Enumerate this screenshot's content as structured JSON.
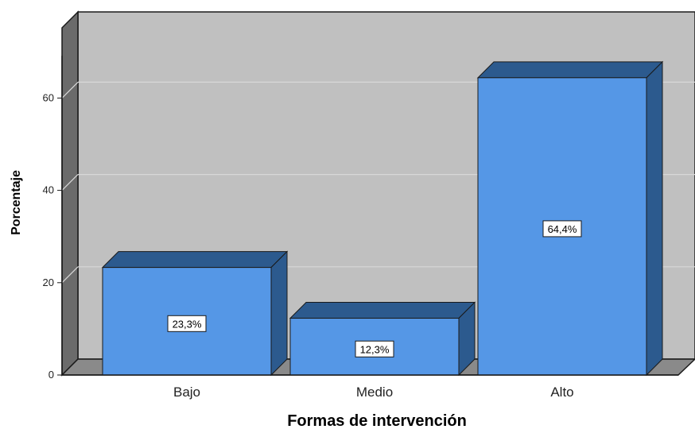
{
  "chart_data": {
    "type": "bar",
    "categories": [
      "Bajo",
      "Medio",
      "Alto"
    ],
    "values": [
      23.3,
      12.3,
      64.4
    ],
    "data_labels": [
      "23,3%",
      "12,3%",
      "64,4%"
    ],
    "title": "",
    "xlabel": "Formas de intervención",
    "ylabel": "Porcentaje",
    "ylim": [
      0,
      70
    ],
    "yticks": [
      0,
      20,
      40,
      60
    ],
    "ytick_labels": [
      "0",
      "20",
      "40",
      "60"
    ],
    "grid": true,
    "style": "3d",
    "colors": {
      "bar_front": "#5597e6",
      "bar_top": "#2c5a8e",
      "bar_side": "#2c5a8e",
      "plot_back": "#c0c0c0",
      "plot_floor": "#8a8a8a",
      "plot_left_wall": "#6b6b6b",
      "gridline": "#d8d8d8",
      "outline": "#1a1a1a"
    }
  }
}
